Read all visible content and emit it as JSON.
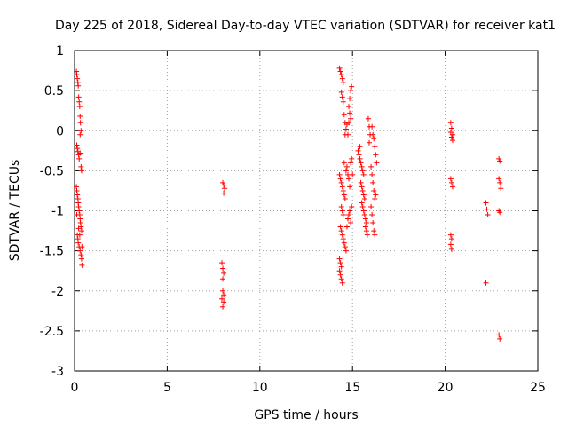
{
  "chart_data": {
    "type": "scatter",
    "title": "Day 225 of 2018, Sidereal Day-to-day VTEC variation (SDTVAR) for receiver kat1",
    "xlabel": "GPS time / hours",
    "ylabel": "SDTVAR / TECUs",
    "xlim": [
      0,
      25
    ],
    "ylim": [
      -3,
      1
    ],
    "xticks": [
      0,
      5,
      10,
      15,
      20,
      25
    ],
    "yticks": [
      -3,
      -2.5,
      -2,
      -1.5,
      -1,
      -0.5,
      0,
      0.5,
      1
    ],
    "grid": true,
    "marker": "plus",
    "color": "#ff0000",
    "series": [
      {
        "name": "SDTVAR",
        "points": [
          [
            0.1,
            0.74
          ],
          [
            0.12,
            0.7
          ],
          [
            0.15,
            0.65
          ],
          [
            0.18,
            0.6
          ],
          [
            0.2,
            0.56
          ],
          [
            0.22,
            0.42
          ],
          [
            0.25,
            0.36
          ],
          [
            0.28,
            0.3
          ],
          [
            0.3,
            0.18
          ],
          [
            0.32,
            0.1
          ],
          [
            0.35,
            0.0
          ],
          [
            0.3,
            -0.05
          ],
          [
            0.12,
            -0.18
          ],
          [
            0.15,
            -0.22
          ],
          [
            0.18,
            -0.26
          ],
          [
            0.22,
            -0.3
          ],
          [
            0.25,
            -0.35
          ],
          [
            0.3,
            -0.28
          ],
          [
            0.35,
            -0.45
          ],
          [
            0.38,
            -0.5
          ],
          [
            0.1,
            -0.7
          ],
          [
            0.12,
            -0.75
          ],
          [
            0.15,
            -0.8
          ],
          [
            0.18,
            -0.85
          ],
          [
            0.2,
            -0.9
          ],
          [
            0.22,
            -0.95
          ],
          [
            0.25,
            -1.0
          ],
          [
            0.28,
            -1.05
          ],
          [
            0.3,
            -1.1
          ],
          [
            0.32,
            -1.15
          ],
          [
            0.35,
            -1.2
          ],
          [
            0.38,
            -1.25
          ],
          [
            0.15,
            -1.3
          ],
          [
            0.18,
            -1.35
          ],
          [
            0.2,
            -1.4
          ],
          [
            0.25,
            -1.45
          ],
          [
            0.3,
            -1.5
          ],
          [
            0.35,
            -1.55
          ],
          [
            0.38,
            -1.6
          ],
          [
            0.4,
            -1.68
          ],
          [
            0.22,
            -1.22
          ],
          [
            0.28,
            -1.3
          ],
          [
            0.12,
            -1.05
          ],
          [
            0.4,
            -1.45
          ],
          [
            8.0,
            -0.65
          ],
          [
            8.05,
            -0.68
          ],
          [
            8.1,
            -0.72
          ],
          [
            8.05,
            -0.78
          ],
          [
            7.95,
            -1.65
          ],
          [
            8.0,
            -1.72
          ],
          [
            8.05,
            -1.78
          ],
          [
            8.0,
            -1.85
          ],
          [
            8.0,
            -2.0
          ],
          [
            8.05,
            -2.05
          ],
          [
            7.95,
            -2.1
          ],
          [
            8.05,
            -2.14
          ],
          [
            8.0,
            -2.2
          ],
          [
            14.3,
            0.78
          ],
          [
            14.35,
            0.74
          ],
          [
            14.4,
            0.7
          ],
          [
            14.45,
            0.65
          ],
          [
            14.5,
            0.6
          ],
          [
            14.4,
            0.48
          ],
          [
            14.45,
            0.42
          ],
          [
            14.5,
            0.36
          ],
          [
            14.55,
            0.2
          ],
          [
            14.6,
            0.1
          ],
          [
            14.65,
            0.02
          ],
          [
            14.6,
            -0.05
          ],
          [
            14.7,
            0.08
          ],
          [
            14.8,
            0.3
          ],
          [
            14.85,
            0.4
          ],
          [
            14.9,
            0.5
          ],
          [
            14.95,
            0.55
          ],
          [
            14.85,
            0.22
          ],
          [
            14.9,
            0.15
          ],
          [
            14.8,
            0.1
          ],
          [
            14.75,
            -0.05
          ],
          [
            14.3,
            -0.55
          ],
          [
            14.35,
            -0.6
          ],
          [
            14.4,
            -0.65
          ],
          [
            14.45,
            -0.7
          ],
          [
            14.5,
            -0.75
          ],
          [
            14.55,
            -0.8
          ],
          [
            14.6,
            -0.85
          ],
          [
            14.65,
            -0.5
          ],
          [
            14.7,
            -0.45
          ],
          [
            14.75,
            -0.55
          ],
          [
            14.8,
            -0.6
          ],
          [
            14.85,
            -0.7
          ],
          [
            14.9,
            -0.4
          ],
          [
            14.95,
            -0.35
          ],
          [
            15.0,
            -0.55
          ],
          [
            14.55,
            -0.4
          ],
          [
            14.4,
            -0.95
          ],
          [
            14.45,
            -1.0
          ],
          [
            14.5,
            -1.05
          ],
          [
            14.35,
            -1.2
          ],
          [
            14.4,
            -1.25
          ],
          [
            14.45,
            -1.3
          ],
          [
            14.5,
            -1.35
          ],
          [
            14.55,
            -1.4
          ],
          [
            14.6,
            -1.45
          ],
          [
            14.65,
            -1.5
          ],
          [
            14.7,
            -1.2
          ],
          [
            14.75,
            -1.1
          ],
          [
            14.8,
            -1.05
          ],
          [
            14.85,
            -1.0
          ],
          [
            14.9,
            -1.15
          ],
          [
            14.95,
            -0.95
          ],
          [
            14.3,
            -1.6
          ],
          [
            14.35,
            -1.65
          ],
          [
            14.4,
            -1.7
          ],
          [
            14.35,
            -1.8
          ],
          [
            14.4,
            -1.85
          ],
          [
            14.45,
            -1.9
          ],
          [
            14.3,
            -1.75
          ],
          [
            15.3,
            -0.25
          ],
          [
            15.35,
            -0.3
          ],
          [
            15.4,
            -0.35
          ],
          [
            15.45,
            -0.4
          ],
          [
            15.5,
            -0.45
          ],
          [
            15.55,
            -0.5
          ],
          [
            15.6,
            -0.55
          ],
          [
            15.4,
            -0.2
          ],
          [
            15.45,
            -0.65
          ],
          [
            15.5,
            -0.7
          ],
          [
            15.55,
            -0.75
          ],
          [
            15.6,
            -0.8
          ],
          [
            15.65,
            -0.85
          ],
          [
            15.5,
            -0.9
          ],
          [
            15.55,
            -0.95
          ],
          [
            15.6,
            -1.0
          ],
          [
            15.65,
            -1.05
          ],
          [
            15.7,
            -1.1
          ],
          [
            15.75,
            -1.15
          ],
          [
            15.7,
            -1.2
          ],
          [
            15.75,
            -1.25
          ],
          [
            15.8,
            -1.3
          ],
          [
            15.85,
            0.15
          ],
          [
            15.9,
            0.05
          ],
          [
            15.95,
            -0.05
          ],
          [
            15.9,
            -0.15
          ],
          [
            16.0,
            -0.45
          ],
          [
            16.05,
            -0.55
          ],
          [
            16.1,
            -0.65
          ],
          [
            16.15,
            -0.75
          ],
          [
            16.2,
            -0.85
          ],
          [
            16.25,
            -0.8
          ],
          [
            16.0,
            -0.95
          ],
          [
            16.05,
            -1.05
          ],
          [
            16.1,
            -1.15
          ],
          [
            16.15,
            -1.25
          ],
          [
            16.2,
            -1.3
          ],
          [
            16.1,
            -0.05
          ],
          [
            16.15,
            -0.1
          ],
          [
            16.2,
            -0.2
          ],
          [
            16.25,
            -0.3
          ],
          [
            16.3,
            -0.4
          ],
          [
            16.05,
            0.05
          ],
          [
            20.3,
            0.1
          ],
          [
            20.35,
            0.03
          ],
          [
            20.3,
            -0.02
          ],
          [
            20.4,
            -0.05
          ],
          [
            20.35,
            -0.08
          ],
          [
            20.4,
            -0.12
          ],
          [
            20.3,
            -0.6
          ],
          [
            20.35,
            -0.65
          ],
          [
            20.4,
            -0.7
          ],
          [
            20.3,
            -1.3
          ],
          [
            20.35,
            -1.35
          ],
          [
            20.3,
            -1.42
          ],
          [
            20.35,
            -1.48
          ],
          [
            22.2,
            -0.9
          ],
          [
            22.25,
            -0.98
          ],
          [
            22.3,
            -1.05
          ],
          [
            22.2,
            -1.9
          ],
          [
            22.9,
            -0.35
          ],
          [
            22.95,
            -0.38
          ],
          [
            22.9,
            -0.6
          ],
          [
            22.95,
            -0.65
          ],
          [
            23.0,
            -0.72
          ],
          [
            22.9,
            -1.0
          ],
          [
            22.95,
            -1.02
          ],
          [
            22.9,
            -2.55
          ],
          [
            22.95,
            -2.6
          ]
        ]
      }
    ]
  }
}
